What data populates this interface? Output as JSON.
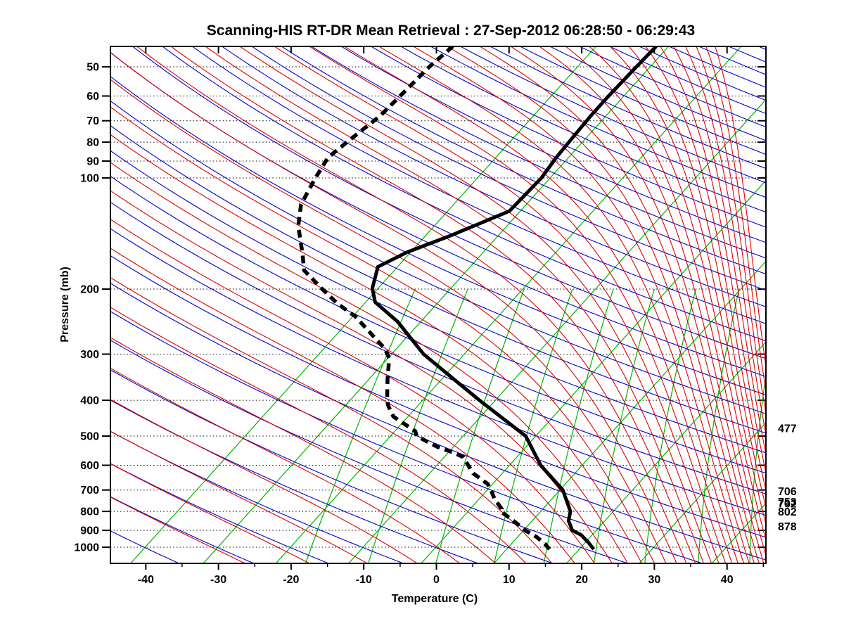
{
  "title": "Scanning-HIS RT-DR Mean Retrieval : 27-Sep-2012 06:28:50 - 06:29:43",
  "axes": {
    "x": {
      "label": "Temperature (C)",
      "tick_values": [
        -40,
        -30,
        -20,
        -10,
        0,
        10,
        20,
        30,
        40
      ],
      "minor_tick_values": [
        -45,
        -35,
        -25,
        -15,
        -5,
        5,
        15,
        25,
        35,
        45
      ],
      "min_C": -45,
      "max_C": 45.4
    },
    "y": {
      "label": "Pressure (mb)",
      "tick_values": [
        50,
        60,
        70,
        80,
        90,
        100,
        200,
        300,
        400,
        500,
        600,
        700,
        800,
        900,
        1000
      ],
      "scale": "log",
      "min_mb": 44,
      "max_mb": 1106
    }
  },
  "right_annotations": [
    {
      "pressure_mb": 477,
      "label": "477"
    },
    {
      "pressure_mb": 706,
      "label": "706"
    },
    {
      "pressure_mb": 753,
      "label": "753"
    },
    {
      "pressure_mb": 762,
      "label": "762"
    },
    {
      "pressure_mb": 802,
      "label": "802"
    },
    {
      "pressure_mb": 878,
      "label": "878"
    }
  ],
  "chart_data": {
    "type": "line",
    "subtype": "skew-t-log-p-sounding",
    "title": "Scanning-HIS RT-DR Mean Retrieval : 27-Sep-2012 06:28:50 - 06:29:43",
    "xlabel": "Temperature (C)",
    "ylabel": "Pressure (mb)",
    "x_range_C": [
      -45,
      45.4
    ],
    "pressure_range_mb": [
      44,
      1106
    ],
    "legend": "none",
    "series": [
      {
        "name": "temperature",
        "line": "solid",
        "color": "#000000",
        "width": 5,
        "points_p_T": [
          [
            44,
            -31.7
          ],
          [
            50,
            -31.9
          ],
          [
            60,
            -32.1
          ],
          [
            68,
            -32.1
          ],
          [
            78,
            -31.9
          ],
          [
            88,
            -31.7
          ],
          [
            100,
            -31.2
          ],
          [
            123,
            -31.5
          ],
          [
            143,
            -36.5
          ],
          [
            159,
            -40.5
          ],
          [
            174,
            -42.7
          ],
          [
            199,
            -40.8
          ],
          [
            217,
            -38.7
          ],
          [
            245,
            -33.2
          ],
          [
            300,
            -25.6
          ],
          [
            348,
            -18.7
          ],
          [
            400,
            -12.2
          ],
          [
            500,
            -1.4
          ],
          [
            600,
            4.3
          ],
          [
            700,
            10.4
          ],
          [
            800,
            14.1
          ],
          [
            848,
            15.0
          ],
          [
            900,
            16.7
          ],
          [
            927,
            18.5
          ],
          [
            968,
            20.3
          ],
          [
            1013,
            22.0
          ]
        ]
      },
      {
        "name": "dew_point",
        "line": "dashed",
        "color": "#000000",
        "width": 5.5,
        "points_p_T": [
          [
            44,
            -59.7
          ],
          [
            50,
            -60.4
          ],
          [
            60,
            -60.8
          ],
          [
            68,
            -61.1
          ],
          [
            78,
            -62.2
          ],
          [
            88,
            -63.1
          ],
          [
            100,
            -62.3
          ],
          [
            118,
            -61.0
          ],
          [
            135,
            -58.7
          ],
          [
            159,
            -54.9
          ],
          [
            178,
            -52.4
          ],
          [
            200,
            -47.6
          ],
          [
            219,
            -43.7
          ],
          [
            237,
            -39.7
          ],
          [
            290,
            -31.6
          ],
          [
            308,
            -29.8
          ],
          [
            350,
            -27.5
          ],
          [
            400,
            -24.9
          ],
          [
            415,
            -24.0
          ],
          [
            443,
            -22.0
          ],
          [
            485,
            -17.2
          ],
          [
            500,
            -16.4
          ],
          [
            535,
            -12.2
          ],
          [
            553,
            -9.5
          ],
          [
            570,
            -7.4
          ],
          [
            631,
            -4.0
          ],
          [
            674,
            -0.7
          ],
          [
            700,
            0.5
          ],
          [
            740,
            2.1
          ],
          [
            787,
            4.3
          ],
          [
            800,
            4.5
          ],
          [
            848,
            7.4
          ],
          [
            884,
            9.4
          ],
          [
            900,
            10.2
          ],
          [
            938,
            12.6
          ],
          [
            979,
            14.6
          ],
          [
            1013,
            15.9
          ]
        ]
      }
    ],
    "grid": {
      "isobars_mb": {
        "color": "#000000",
        "style": "dotted",
        "values": [
          50,
          60,
          70,
          80,
          90,
          100,
          200,
          300,
          400,
          500,
          600,
          700,
          800,
          900,
          1000
        ]
      },
      "isotherms_C": {
        "color": "#00b400",
        "style": "solid",
        "values": [
          -40,
          -30,
          -20,
          -10,
          0,
          10,
          20,
          30,
          40
        ]
      },
      "mixing_ratio_g_kg": {
        "color": "#00b400",
        "style": "solid",
        "top_mb": 200,
        "values": [
          1,
          2,
          4,
          7,
          11,
          17,
          26,
          40,
          60
        ]
      },
      "dry_adiabats_theta_K": {
        "color": "#0000cc",
        "style": "solid",
        "from": 233,
        "to": 633,
        "step": 10
      },
      "moist_adiabats_theta_e_K": {
        "color": "#dd0000",
        "style": "solid",
        "from": 243,
        "to": 633,
        "step": 10
      }
    }
  }
}
